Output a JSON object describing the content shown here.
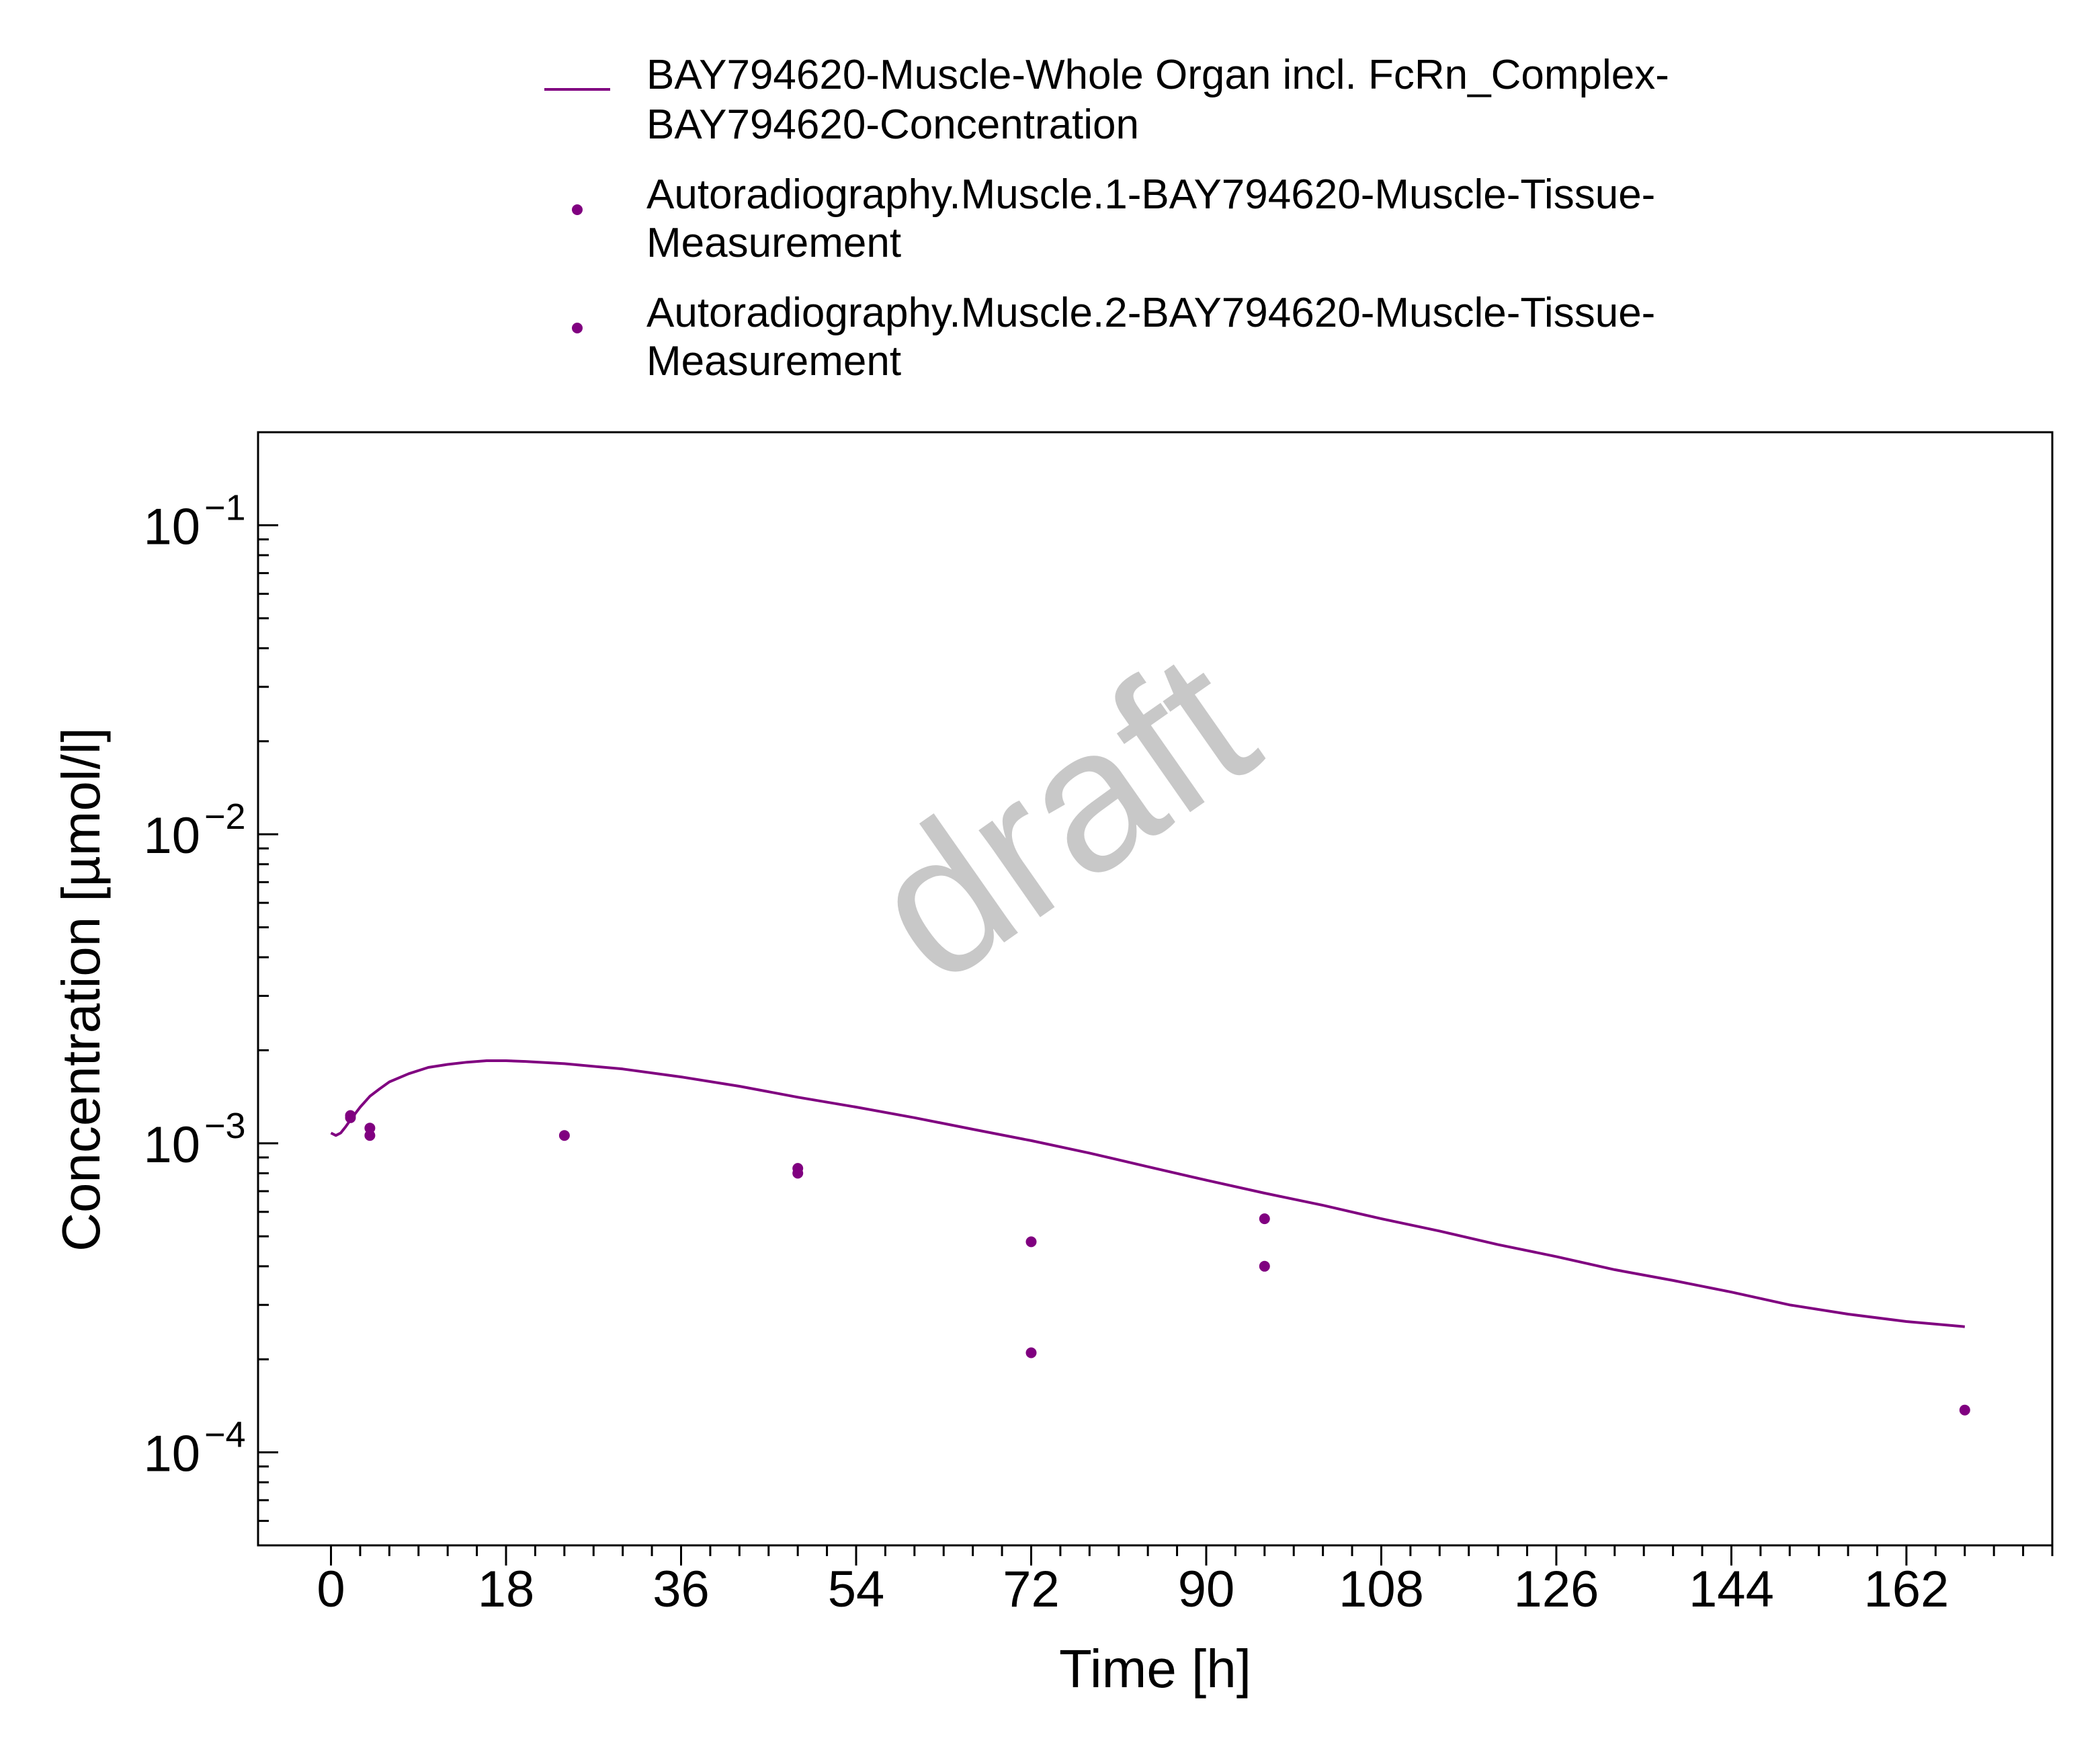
{
  "chart_data": {
    "type": "line",
    "title": "",
    "xlabel": "Time [h]",
    "ylabel": "Concentration [µmol/l]",
    "xlim": [
      -7.5,
      177
    ],
    "ylim": [
      5e-05,
      0.2
    ],
    "yscale": "log",
    "xticks": [
      0,
      18,
      36,
      54,
      72,
      90,
      108,
      126,
      144,
      162
    ],
    "yticks": [
      {
        "value": 0.1,
        "base": "10",
        "exp": "−1"
      },
      {
        "value": 0.01,
        "base": "10",
        "exp": "−2"
      },
      {
        "value": 0.001,
        "base": "10",
        "exp": "−3"
      },
      {
        "value": 0.0001,
        "base": "10",
        "exp": "−4"
      }
    ],
    "grid": false,
    "legend_position": "top",
    "color": "#800080",
    "watermark": "draft",
    "series": [
      {
        "name_lines": [
          "BAY794620-Muscle-Whole Organ incl. FcRn_Complex-",
          "BAY794620-Concentration"
        ],
        "kind": "line",
        "x": [
          0,
          0.5,
          1,
          1.5,
          2,
          3,
          4,
          5,
          6,
          8,
          10,
          12,
          14,
          16,
          18,
          20,
          24,
          30,
          36,
          42,
          48,
          54,
          60,
          66,
          72,
          78,
          84,
          90,
          96,
          102,
          108,
          114,
          120,
          126,
          132,
          138,
          144,
          150,
          156,
          162,
          168
        ],
        "y": [
          0.00108,
          0.00106,
          0.00108,
          0.00113,
          0.00119,
          0.00131,
          0.00142,
          0.0015,
          0.00158,
          0.00168,
          0.00176,
          0.0018,
          0.00183,
          0.00185,
          0.00185,
          0.00184,
          0.00181,
          0.00174,
          0.00164,
          0.00153,
          0.00141,
          0.00131,
          0.00121,
          0.00111,
          0.00102,
          0.00093,
          0.00084,
          0.00076,
          0.00069,
          0.00063,
          0.00057,
          0.00052,
          0.00047,
          0.00043,
          0.00039,
          0.00036,
          0.00033,
          0.0003,
          0.00028,
          0.000265,
          0.000255
        ]
      },
      {
        "name_lines": [
          "Autoradiography.Muscle.1-BAY794620-Muscle-Tissue-",
          "Measurement"
        ],
        "kind": "scatter",
        "x": [
          2,
          4,
          24,
          48,
          72,
          96,
          168
        ],
        "y": [
          0.00123,
          0.00112,
          0.00106,
          0.00083,
          0.00048,
          0.00057,
          0.000137
        ]
      },
      {
        "name_lines": [
          "Autoradiography.Muscle.2-BAY794620-Muscle-Tissue-",
          "Measurement"
        ],
        "kind": "scatter",
        "x": [
          2,
          4,
          48,
          72,
          96
        ],
        "y": [
          0.00121,
          0.00106,
          0.0008,
          0.00021,
          0.0004
        ]
      }
    ]
  }
}
